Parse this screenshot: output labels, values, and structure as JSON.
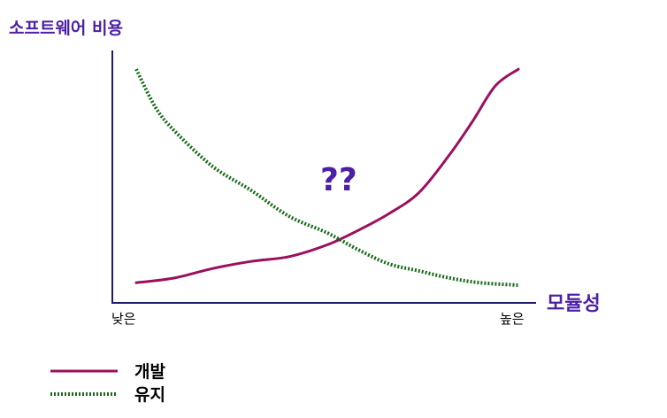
{
  "chart_data": {
    "type": "line",
    "title": "",
    "ylabel": "소프트웨어 비용",
    "xlabel": "모듈성",
    "x_tick_labels": [
      "낮은",
      "높은"
    ],
    "annotation": "??",
    "xlim": [
      0,
      1
    ],
    "ylim": [
      0,
      1
    ],
    "grid": false,
    "legend_placement": "bottom-left",
    "series": [
      {
        "name": "개발",
        "color": "#9b0f5f",
        "line_style": "solid",
        "x": [
          0.0,
          0.1,
          0.2,
          0.3,
          0.4,
          0.5,
          0.58,
          0.66,
          0.74,
          0.82,
          0.88,
          0.94,
          1.0
        ],
        "y": [
          0.04,
          0.06,
          0.1,
          0.13,
          0.15,
          0.2,
          0.26,
          0.33,
          0.42,
          0.58,
          0.72,
          0.87,
          0.94
        ]
      },
      {
        "name": "유지",
        "color": "#1a6a1a",
        "line_style": "dotted",
        "x": [
          0.0,
          0.05,
          0.1,
          0.2,
          0.3,
          0.4,
          0.5,
          0.58,
          0.66,
          0.74,
          0.82,
          0.9,
          1.0
        ],
        "y": [
          0.94,
          0.78,
          0.68,
          0.53,
          0.43,
          0.32,
          0.25,
          0.18,
          0.12,
          0.09,
          0.06,
          0.04,
          0.03
        ]
      }
    ]
  }
}
